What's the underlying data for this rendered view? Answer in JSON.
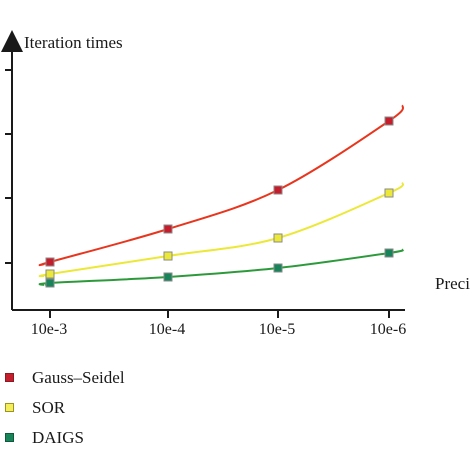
{
  "chart_data": {
    "type": "line",
    "title": "",
    "ylabel": "Iteration times",
    "xlabel": "Preci",
    "categories": [
      "10e-3",
      "10e-4",
      "10e-5",
      "10e-6"
    ],
    "y_ticks_labeled": false,
    "ylim": [
      0,
      8
    ],
    "grid": false,
    "legend_position": "bottom-left",
    "series": [
      {
        "name": "Gauss–Seidel",
        "line_color": "#e8361e",
        "marker_color": "#c61d2c",
        "values": [
          1.6,
          2.7,
          4.0,
          6.3
        ]
      },
      {
        "name": "SOR",
        "line_color": "#ece838",
        "marker_color": "#ece838",
        "values": [
          1.2,
          1.8,
          2.4,
          3.9
        ]
      },
      {
        "name": "DAIGS",
        "line_color": "#2c9a3a",
        "marker_color": "#17845a",
        "values": [
          0.9,
          1.1,
          1.4,
          1.9
        ]
      }
    ]
  }
}
